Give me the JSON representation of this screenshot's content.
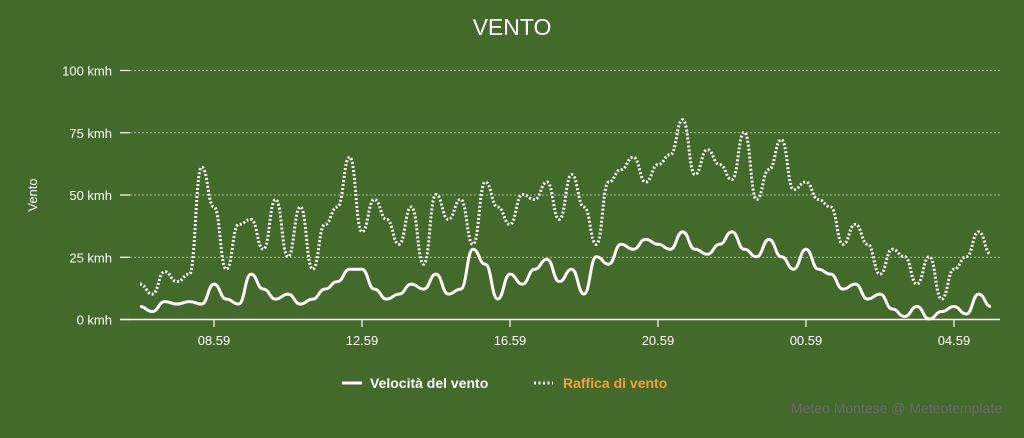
{
  "chart_data": {
    "type": "line",
    "title": "VENTO",
    "ylabel": "Vento",
    "xlabel": "",
    "ylim": [
      0,
      100
    ],
    "yticks": [
      "0 kmh",
      "25 kmh",
      "50 kmh",
      "75 kmh",
      "100 kmh"
    ],
    "ytick_values": [
      0,
      25,
      50,
      75,
      100
    ],
    "xticks": [
      "08.59",
      "12.59",
      "16.59",
      "20.59",
      "00.59",
      "04.59"
    ],
    "grid": true,
    "legend": "bottom",
    "x": [
      "06.59",
      "07.19",
      "07.39",
      "07.59",
      "08.19",
      "08.39",
      "08.59",
      "09.19",
      "09.39",
      "09.59",
      "10.19",
      "10.39",
      "10.59",
      "11.19",
      "11.39",
      "11.59",
      "12.19",
      "12.39",
      "12.59",
      "13.19",
      "13.39",
      "13.59",
      "14.19",
      "14.39",
      "14.59",
      "15.19",
      "15.39",
      "15.59",
      "16.19",
      "16.39",
      "16.59",
      "17.19",
      "17.39",
      "17.59",
      "18.19",
      "18.39",
      "18.59",
      "19.19",
      "19.39",
      "19.59",
      "20.19",
      "20.39",
      "20.59",
      "21.19",
      "21.39",
      "21.59",
      "22.19",
      "22.39",
      "22.59",
      "23.19",
      "23.39",
      "23.59",
      "00.19",
      "00.39",
      "00.59",
      "01.19",
      "01.39",
      "01.59",
      "02.19",
      "02.39",
      "02.59",
      "03.19",
      "03.39",
      "03.59",
      "04.19",
      "04.39",
      "04.59",
      "05.19",
      "05.39",
      "05.59"
    ],
    "series": [
      {
        "name": "Velocità del vento",
        "style": "solid",
        "color": "#ffffff",
        "values": [
          5,
          3,
          7,
          6,
          7,
          6,
          14,
          8,
          6,
          18,
          12,
          8,
          10,
          6,
          8,
          12,
          15,
          20,
          20,
          12,
          8,
          10,
          14,
          12,
          18,
          10,
          12,
          28,
          22,
          8,
          18,
          14,
          20,
          24,
          15,
          20,
          10,
          25,
          22,
          30,
          28,
          32,
          30,
          28,
          35,
          28,
          26,
          30,
          35,
          28,
          25,
          32,
          25,
          20,
          28,
          20,
          18,
          12,
          14,
          8,
          10,
          4,
          1,
          5,
          0,
          3,
          5,
          2,
          10,
          5
        ]
      },
      {
        "name": "Raffica di vento",
        "style": "dotted",
        "color": "#ffffff",
        "legend_color": "#f5a030",
        "values": [
          14,
          10,
          19,
          15,
          18,
          61,
          45,
          20,
          38,
          40,
          28,
          48,
          25,
          45,
          20,
          38,
          45,
          65,
          35,
          48,
          40,
          30,
          45,
          22,
          50,
          40,
          48,
          30,
          55,
          45,
          38,
          50,
          48,
          55,
          40,
          58,
          45,
          30,
          55,
          60,
          65,
          55,
          62,
          66,
          80,
          58,
          68,
          62,
          56,
          75,
          48,
          60,
          72,
          52,
          55,
          48,
          45,
          30,
          38,
          30,
          18,
          28,
          25,
          14,
          25,
          8,
          20,
          25,
          35,
          26
        ]
      }
    ]
  },
  "credit": "Meteo Montese @ Meteotemplate",
  "colors": {
    "background": "#43692b",
    "credit": "#6a6a6a"
  }
}
